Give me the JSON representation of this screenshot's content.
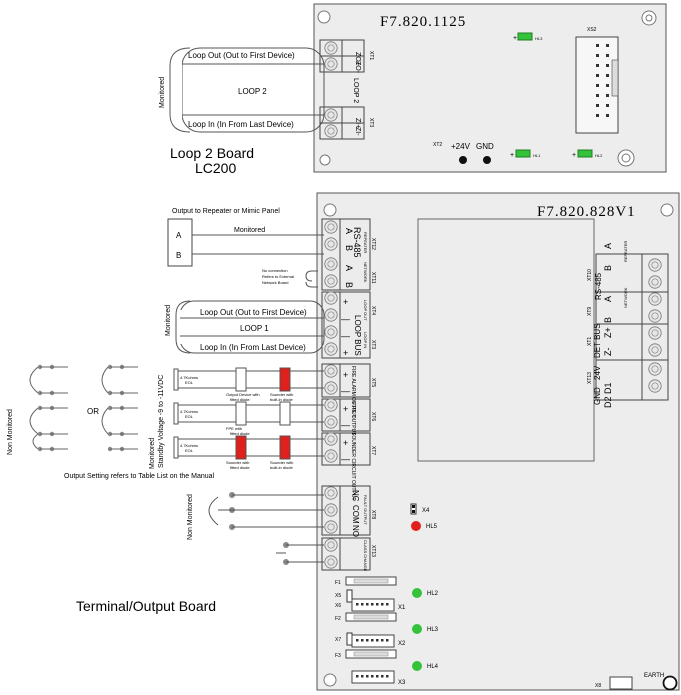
{
  "loop2_board": {
    "code": "F7.820.1125",
    "name_line1": "Loop 2 Board",
    "name_line2": "LC200",
    "loop_label": "LOOP 2",
    "loop_out": "Loop Out (Out to First Device)",
    "loop_in": "Loop In (In From Last Device)",
    "monitored": "Monitored",
    "terminals": [
      "ZO+",
      "ZO-",
      "ZI+",
      "ZI-"
    ],
    "xt1": "XT1",
    "xt3": "XT3",
    "xt2": "XT2",
    "xs2": "XS2",
    "plus24v": "+24V",
    "gnd": "GND",
    "hl3": "HL3",
    "hl1": "HL1",
    "hl2": "HL2",
    "led_color": "#34c23a"
  },
  "terminal_board": {
    "code": "F7.820.828V1",
    "name": "Terminal/Output Board",
    "rs485_title": "RS-485",
    "repeater": "REPEATER",
    "network": "NETWORK",
    "out_to_repeater": "Output to Repeater or Mimic Panel",
    "monitored": "Monitored",
    "panel_a": "A",
    "panel_b": "B",
    "ab_labels": [
      "A",
      "B",
      "A",
      "B"
    ],
    "no_connection": "No connection",
    "refers_to": "Refers to External",
    "network_board": "Network Board",
    "xt12": "XT12",
    "xt11": "XT11",
    "loop_out": "Loop Out (Out to First Device)",
    "loop1": "LOOP 1",
    "loop_in": "Loop In (In From Last Device)",
    "loop_bus": "LOOP BUS",
    "loop_out_small": "LOOP OUT",
    "loop_in_small": "LOOP IN",
    "xt4": "XT4",
    "xt3": "XT3",
    "plus": "+",
    "minus": "—",
    "non_monitored": "Non Monitored",
    "or": "OR",
    "monitored_standby": "Monitored",
    "standby_voltage": "Standby Voltage -9 to -11VDC",
    "eol_label": "4.7Kohms",
    "eol_sub": "EOL",
    "output_device": "Output Device with",
    "fitted_diode": "fitted diode",
    "sounder_built": "Sounder with",
    "built_in_diode": "built-in diode",
    "fpe_fitted": "FPE with",
    "fitted_diode2": "fitted diode",
    "sounder_fitted": "Sounder with",
    "fitted_diode3": "fitted diode",
    "fire_alarm": "FIRE ALARM OUTPUT",
    "fpe_output": "F.P.E OUTPUT",
    "sounder_circuit": "SOUNDER CIRCUIT OUTPUT",
    "xt5": "XT5",
    "xt6": "XT6",
    "xt7": "XT7",
    "output_setting": "Output Setting refers to Table List on the Manual",
    "nc": "NC",
    "com": "COM",
    "no": "NO",
    "fault_output": "FAULT OUTPUT",
    "xt8": "XT8",
    "class_change": "CLASS CHANGE",
    "xt13_left": "XT13",
    "x4": "X4",
    "hl5": "HL5",
    "f1": "F1",
    "f2": "F2",
    "f3": "F3",
    "x5": "X5",
    "x6": "X6",
    "x7": "X7",
    "x1": "X1",
    "x2": "X2",
    "x3": "X3",
    "hl2": "HL2",
    "hl3": "HL3",
    "hl4": "HL4",
    "x8": "X8",
    "earth": "EARTH",
    "xt10": "XT10",
    "xt9": "XT9",
    "xt1r": "XT1",
    "xt13r": "XT13",
    "rs485_right": "RS-485",
    "det_bus": "DET BUS",
    "right_terms_a": [
      "A",
      "B",
      "A",
      "B",
      "Z+",
      "Z-",
      "DET",
      "24V",
      "GND"
    ],
    "right_terms_b": [
      "D1",
      "D2"
    ],
    "led_green": "#34c23a",
    "led_red": "#e0201c"
  }
}
